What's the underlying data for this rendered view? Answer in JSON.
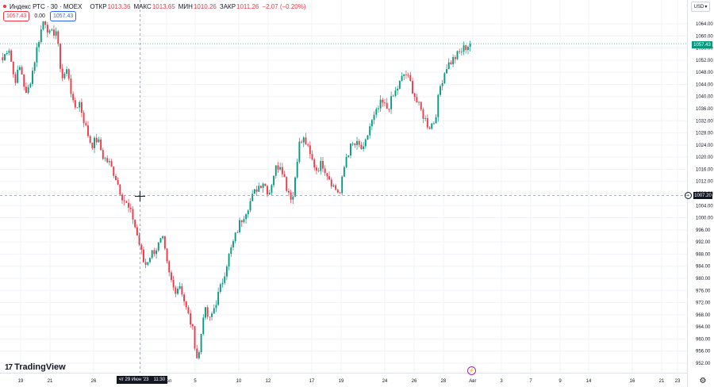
{
  "header": {
    "symbol": "Индекс РТС · 30 · MOEX",
    "open_label": "ОТКР",
    "open": "1013.36",
    "high_label": "МАКС",
    "high": "1013.65",
    "low_label": "МИН",
    "low": "1010.26",
    "close_label": "ЗАКР",
    "close": "1011.26",
    "change": "−2.07 (−0.20%)",
    "sell_price": "1057.43",
    "spread": "0.00",
    "buy_price": "1057.43"
  },
  "currency_label": "USD",
  "currency_icon": "chevron-down-icon",
  "brand": {
    "name": "TradingView",
    "logo_icon": "tradingview-logo-icon"
  },
  "crosshair": {
    "time_label_date": "чт 29 Июн '23",
    "time_label_time": "11:30",
    "price_label": "1007.20"
  },
  "last_price_label": "1057.43",
  "colors": {
    "up": "#089981",
    "down": "#f23645",
    "grid": "#f0f3fa",
    "text": "#131722",
    "crosshair_label_bg": "#131722",
    "buy": "#2962ff",
    "event_marker": "#9c27b0"
  },
  "icons": [
    "settings-icon",
    "target-icon",
    "crosshair-icon",
    "lightning-event-icon"
  ],
  "chart_data": {
    "type": "candlestick",
    "interval": "30",
    "y_axis": {
      "position": "right",
      "ylim": [
        950,
        1066
      ],
      "ticks": [
        952,
        956,
        960,
        964,
        968,
        972,
        976,
        980,
        984,
        988,
        992,
        996,
        1000,
        1004,
        1008,
        1012,
        1016,
        1020,
        1024,
        1028,
        1032,
        1036,
        1040,
        1044,
        1048,
        1052,
        1056,
        1060,
        1064
      ]
    },
    "x_axis": {
      "ticks": [
        "19",
        "21",
        "26",
        "Июл",
        "5",
        "10",
        "12",
        "17",
        "19",
        "24",
        "26",
        "28",
        "Авг",
        "3",
        "7",
        "9",
        "14",
        "16",
        "21",
        "23"
      ]
    },
    "grid": true,
    "price_path": [
      [
        1052,
        1057
      ],
      [
        1045,
        1050
      ],
      [
        1040,
        1048
      ],
      [
        1058,
        1066
      ],
      [
        1060,
        1062
      ],
      [
        1046,
        1049
      ],
      [
        1036,
        1038
      ],
      [
        1030,
        1024
      ],
      [
        1026,
        1020
      ],
      [
        1018,
        1014
      ],
      [
        1008,
        1004
      ],
      [
        1000,
        992
      ],
      [
        984,
        988
      ],
      [
        990,
        993
      ],
      [
        982,
        976
      ],
      [
        978,
        970
      ],
      [
        964,
        952
      ],
      [
        970,
        966
      ],
      [
        972,
        978
      ],
      [
        986,
        992
      ],
      [
        998,
        1002
      ],
      [
        1006,
        1010
      ],
      [
        1012,
        1008
      ],
      [
        1016,
        1018
      ],
      [
        1010,
        1006
      ],
      [
        1024,
        1026
      ],
      [
        1020,
        1016
      ],
      [
        1018,
        1014
      ],
      [
        1010,
        1008
      ],
      [
        1020,
        1024
      ],
      [
        1024,
        1022
      ],
      [
        1030,
        1034
      ],
      [
        1038,
        1036
      ],
      [
        1040,
        1044
      ],
      [
        1048,
        1044
      ],
      [
        1038,
        1034
      ],
      [
        1030,
        1032
      ],
      [
        1044,
        1050
      ],
      [
        1052,
        1054
      ],
      [
        1056,
        1057.43
      ]
    ]
  }
}
